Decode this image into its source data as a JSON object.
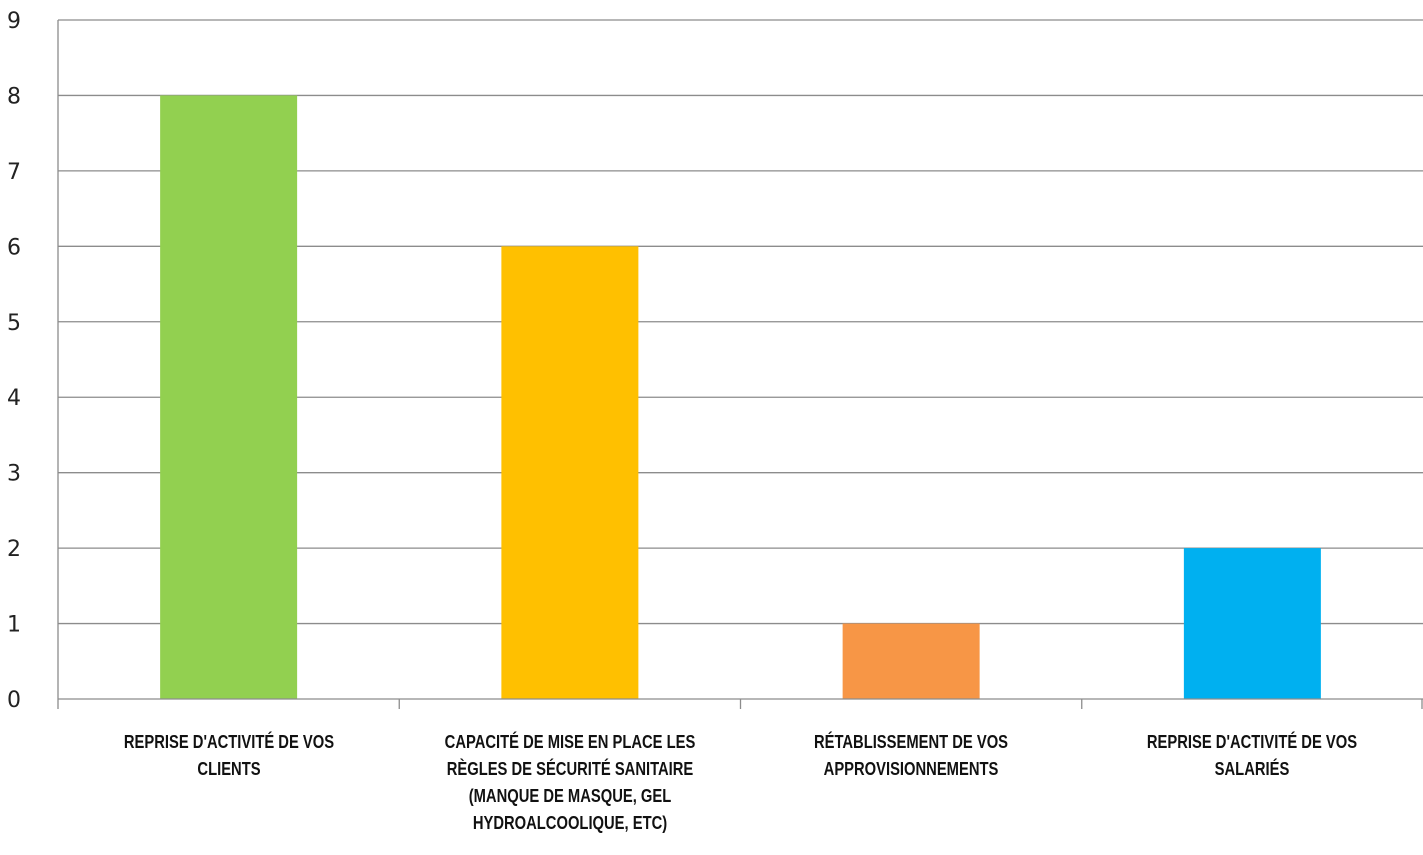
{
  "chart_data": {
    "type": "bar",
    "categories": [
      "Reprise d'activité de vos clients",
      "Capacité de mise en place les règles de sécurité sanitaire (manque de masque, gel hydroalcoolique, etc)",
      "Rétablissement de vos approvisionnements",
      "Reprise d'activité de vos salariés"
    ],
    "values": [
      8,
      6,
      1,
      2
    ],
    "colors": [
      "#92d050",
      "#ffc000",
      "#f79646",
      "#00b0f0"
    ],
    "ylim": [
      0,
      9
    ],
    "yticks": [
      "0",
      "1",
      "2",
      "3",
      "4",
      "5",
      "6",
      "7",
      "8",
      "9"
    ],
    "title": "",
    "xlabel": "",
    "ylabel": "",
    "grid": true,
    "legend": "none"
  }
}
